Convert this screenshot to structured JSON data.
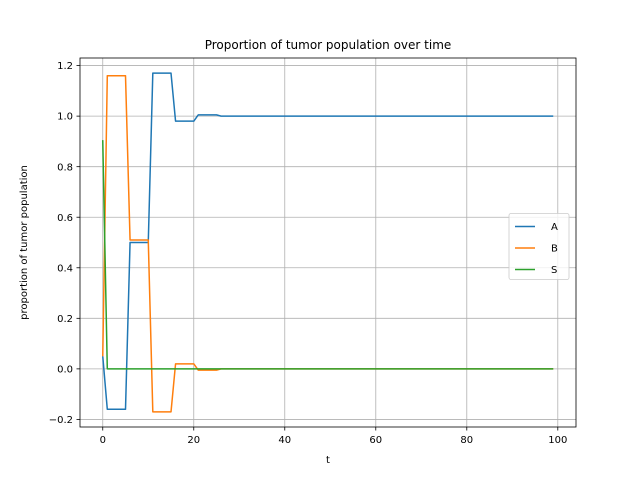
{
  "chart_data": {
    "type": "line",
    "title": "Proportion of tumor population over time",
    "xlabel": "t",
    "ylabel": "proportion of tumor population",
    "xlim": [
      -5,
      104
    ],
    "ylim": [
      -0.23,
      1.23
    ],
    "xticks": [
      0,
      20,
      40,
      60,
      80,
      100
    ],
    "yticks": [
      -0.2,
      0.0,
      0.2,
      0.4,
      0.6,
      0.8,
      1.0,
      1.2
    ],
    "xtick_labels": [
      "0",
      "20",
      "40",
      "60",
      "80",
      "100"
    ],
    "ytick_labels": [
      "−0.2",
      "0.0",
      "0.2",
      "0.4",
      "0.6",
      "0.8",
      "1.0",
      "1.2"
    ],
    "grid": true,
    "legend_position": "center-right",
    "series": [
      {
        "name": "A",
        "color": "#1f77b4",
        "x": [
          0,
          1,
          5,
          6,
          10,
          11,
          15,
          16,
          20,
          21,
          25,
          26,
          30,
          99
        ],
        "y": [
          0.05,
          -0.16,
          -0.16,
          0.5,
          0.5,
          1.17,
          1.17,
          0.98,
          0.98,
          1.005,
          1.005,
          1.0,
          1.0,
          1.0
        ]
      },
      {
        "name": "B",
        "color": "#ff7f0e",
        "x": [
          0,
          1,
          5,
          6,
          10,
          11,
          15,
          16,
          20,
          21,
          25,
          26,
          30,
          99
        ],
        "y": [
          0.05,
          1.16,
          1.16,
          0.51,
          0.51,
          -0.17,
          -0.17,
          0.02,
          0.02,
          -0.005,
          -0.005,
          0.0,
          0.0,
          0.0
        ]
      },
      {
        "name": "S",
        "color": "#2ca02c",
        "x": [
          0,
          1,
          99
        ],
        "y": [
          0.905,
          0.0,
          0.0
        ]
      }
    ]
  }
}
